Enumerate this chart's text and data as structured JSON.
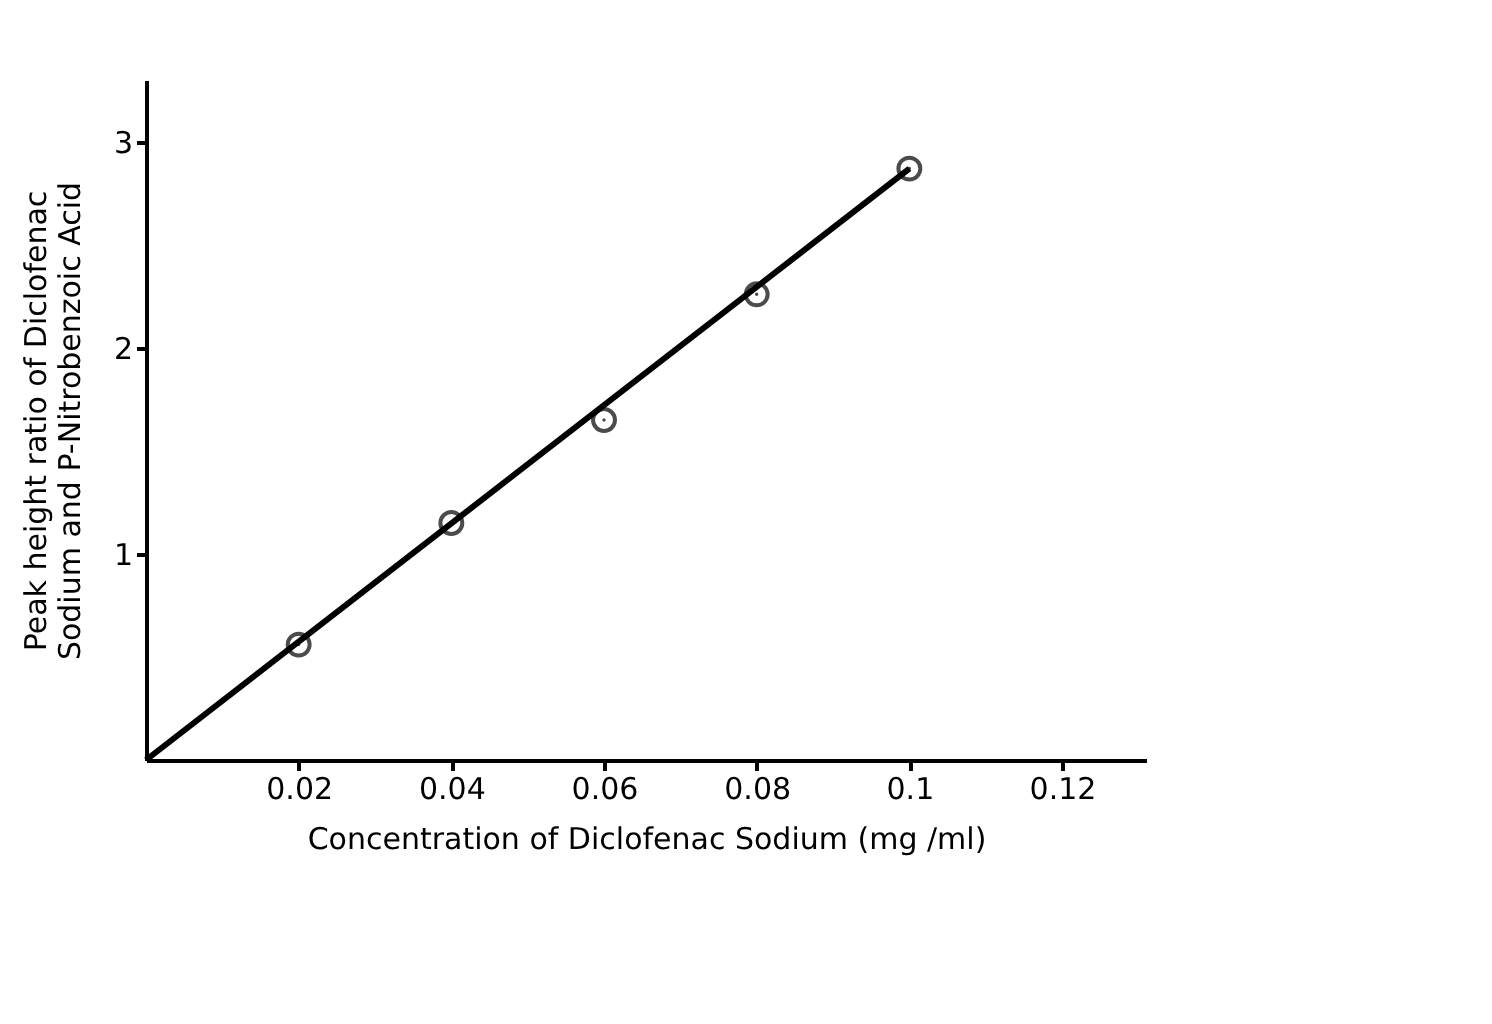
{
  "chart_data": {
    "type": "scatter",
    "xlabel": "Concentration  of  Diclofenac Sodium  (mg /ml)",
    "ylabel": "Peak height  ratio  of  Diclofenac Sodium  and   P-Nitrobenzoic Acid",
    "x": [
      0.02,
      0.04,
      0.06,
      0.08,
      0.1
    ],
    "series": [
      {
        "color": "#000000",
        "marker": "circle",
        "values": [
          0.56,
          1.15,
          1.65,
          2.26,
          2.87
        ]
      },
      {
        "type": "line",
        "color": "#000000",
        "x": [
          0,
          0.1
        ],
        "values": [
          0,
          2.87
        ]
      }
    ],
    "xlim": [
      0,
      0.131
    ],
    "ylim": [
      0,
      3.3
    ],
    "xticks": [
      0.02,
      0.04,
      0.06,
      0.08,
      0.1,
      0.12
    ],
    "yticks": [
      1,
      2,
      3
    ],
    "grid": false
  }
}
